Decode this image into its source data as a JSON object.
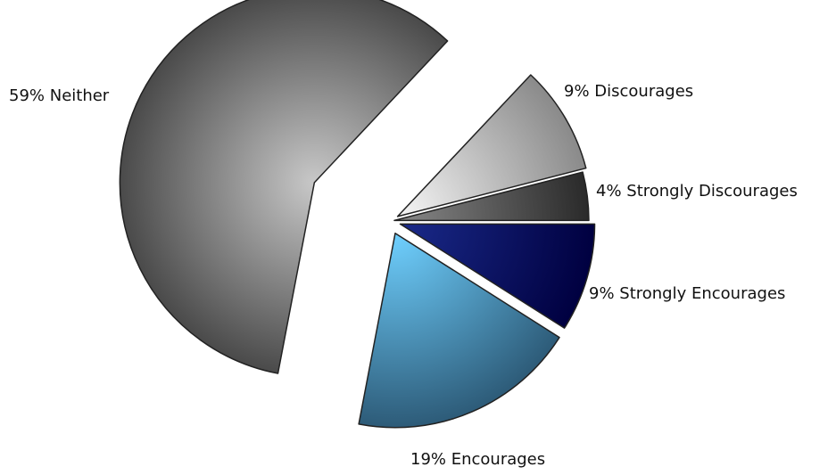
{
  "chart_data": {
    "type": "pie",
    "title": "",
    "slices": [
      {
        "label": "9% Strongly Encourages",
        "value": 9,
        "color_light": "#1a2a8a",
        "color_dark": "#000040"
      },
      {
        "label": "19% Encourages",
        "value": 19,
        "color_light": "#6fd0ff",
        "color_dark": "#2d5b78"
      },
      {
        "label": "59% Neither",
        "value": 59,
        "color_light": "#c8c8c8",
        "color_dark": "#4a4a4a"
      },
      {
        "label": "9% Discourages",
        "value": 9,
        "color_light": "#f7f7f7",
        "color_dark": "#8a8a8a"
      },
      {
        "label": "4% Strongly Discourages",
        "value": 4,
        "color_light": "#8a8a8a",
        "color_dark": "#2a2a2a"
      }
    ],
    "exploded": true,
    "legend": "none"
  }
}
